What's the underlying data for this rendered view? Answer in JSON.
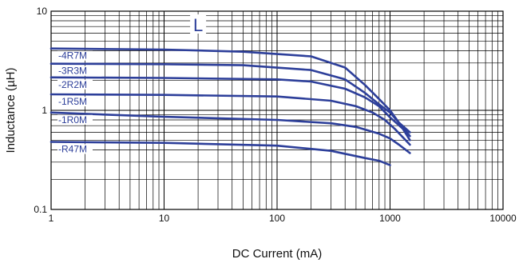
{
  "chart_data": {
    "type": "line",
    "title": "",
    "panel_label": "L",
    "xlabel": "DC Current (mA)",
    "ylabel": "Inductance (µH)",
    "x_scale": "log",
    "y_scale": "log",
    "xlim": [
      1,
      10000
    ],
    "ylim": [
      0.1,
      10
    ],
    "x_ticks": [
      {
        "value": 1,
        "label": "1"
      },
      {
        "value": 10,
        "label": "10"
      },
      {
        "value": 100,
        "label": "100"
      },
      {
        "value": 1000,
        "label": "1000"
      },
      {
        "value": 10000,
        "label": "10000"
      }
    ],
    "y_ticks": [
      {
        "value": 0.1,
        "label": "0.1"
      },
      {
        "value": 1,
        "label": "1"
      },
      {
        "value": 10,
        "label": "10"
      }
    ],
    "grid": true,
    "colors": {
      "series": "#2d3f9a",
      "grid": "#000000",
      "background": "#ffffff"
    },
    "series": [
      {
        "name": "-4R7M",
        "points": [
          [
            1,
            4.2
          ],
          [
            10,
            4.1
          ],
          [
            50,
            3.9
          ],
          [
            200,
            3.5
          ],
          [
            400,
            2.7
          ],
          [
            600,
            1.8
          ],
          [
            800,
            1.3
          ],
          [
            1000,
            1.0
          ],
          [
            1200,
            0.75
          ],
          [
            1500,
            0.6
          ]
        ]
      },
      {
        "name": "-3R3M",
        "points": [
          [
            1,
            2.95
          ],
          [
            10,
            2.92
          ],
          [
            50,
            2.85
          ],
          [
            200,
            2.55
          ],
          [
            400,
            2.05
          ],
          [
            600,
            1.5
          ],
          [
            800,
            1.15
          ],
          [
            1000,
            0.95
          ],
          [
            1200,
            0.75
          ],
          [
            1500,
            0.55
          ]
        ]
      },
      {
        "name": "-2R2M",
        "points": [
          [
            1,
            2.15
          ],
          [
            10,
            2.12
          ],
          [
            100,
            2.05
          ],
          [
            200,
            1.95
          ],
          [
            400,
            1.65
          ],
          [
            600,
            1.35
          ],
          [
            800,
            1.1
          ],
          [
            1000,
            0.85
          ],
          [
            1300,
            0.65
          ],
          [
            1500,
            0.5
          ]
        ]
      },
      {
        "name": "-1R5M",
        "points": [
          [
            1,
            1.45
          ],
          [
            10,
            1.43
          ],
          [
            100,
            1.38
          ],
          [
            300,
            1.25
          ],
          [
            500,
            1.1
          ],
          [
            700,
            0.95
          ],
          [
            900,
            0.8
          ],
          [
            1100,
            0.65
          ],
          [
            1500,
            0.45
          ]
        ]
      },
      {
        "name": "-1R0M",
        "points": [
          [
            1,
            0.95
          ],
          [
            10,
            0.86
          ],
          [
            100,
            0.8
          ],
          [
            300,
            0.74
          ],
          [
            500,
            0.68
          ],
          [
            800,
            0.58
          ],
          [
            1000,
            0.52
          ],
          [
            1200,
            0.45
          ],
          [
            1500,
            0.37
          ]
        ]
      },
      {
        "name": "-R47M",
        "points": [
          [
            1,
            0.48
          ],
          [
            10,
            0.47
          ],
          [
            100,
            0.44
          ],
          [
            300,
            0.39
          ],
          [
            600,
            0.33
          ],
          [
            800,
            0.31
          ],
          [
            1000,
            0.28
          ]
        ]
      }
    ]
  }
}
